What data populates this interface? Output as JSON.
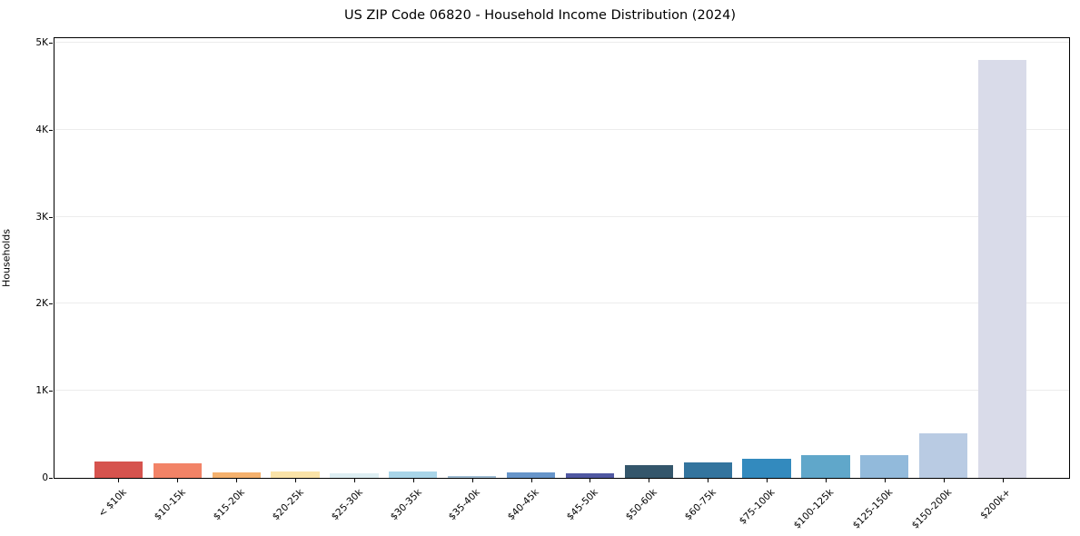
{
  "chart_data": {
    "type": "bar",
    "title": "US ZIP Code 06820 - Household Income Distribution (2024)",
    "xlabel": "",
    "ylabel": "Households",
    "categories": [
      "< $10k",
      "$10-15k",
      "$15-20k",
      "$20-25k",
      "$25-30k",
      "$30-35k",
      "$35-40k",
      "$40-45k",
      "$45-50k",
      "$50-60k",
      "$60-75k",
      "$75-100k",
      "$100-125k",
      "$125-150k",
      "$150-200k",
      "$200k+"
    ],
    "values": [
      190,
      165,
      60,
      70,
      55,
      75,
      25,
      65,
      55,
      145,
      180,
      215,
      265,
      260,
      510,
      4800
    ],
    "bar_colors": [
      "#d6534e",
      "#f28367",
      "#f5b16d",
      "#fae3a8",
      "#ddeef2",
      "#a9d5e8",
      "#9fbcd2",
      "#6795ca",
      "#5058a2",
      "#34566b",
      "#33749e",
      "#338abe",
      "#60a7ca",
      "#92badb",
      "#b9cbe3",
      "#d9dbe9"
    ],
    "ylim": [
      0,
      5050
    ],
    "yticks": [
      {
        "value": 0,
        "label": "0"
      },
      {
        "value": 1000,
        "label": "1K"
      },
      {
        "value": 2000,
        "label": "2K"
      },
      {
        "value": 3000,
        "label": "3K"
      },
      {
        "value": 4000,
        "label": "4K"
      },
      {
        "value": 5000,
        "label": "5K"
      }
    ],
    "grid": "horizontal",
    "gridline_color": "#ececec",
    "legend": "none",
    "background": "#ffffff"
  }
}
